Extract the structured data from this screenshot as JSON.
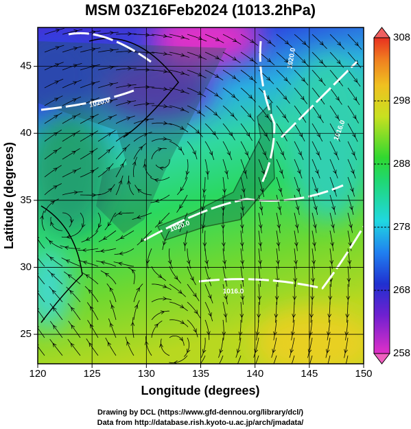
{
  "chart_data": {
    "type": "map",
    "title": "MSM 03Z16Feb2024 (1013.2hPa)",
    "x_label": "Longitude (degrees)",
    "y_label": "Latitude  (degrees)",
    "xlim": [
      120,
      150
    ],
    "xticks": [
      120,
      125,
      130,
      135,
      140,
      145,
      150
    ],
    "ylim": [
      22.8,
      47.9
    ],
    "yticks": [
      25,
      30,
      35,
      40,
      45
    ],
    "colorbar": {
      "lim": [
        258,
        308
      ],
      "ticks": [
        258,
        268,
        278,
        288,
        298,
        308
      ]
    },
    "contour_labels": [
      "1020.0",
      "1020.0",
      "1016.0",
      "1020.0",
      "1016.0"
    ],
    "credits": [
      "Drawing by DCL (https://www.gfd-dennou.org/library/dcl/)",
      "Data from http://database.rish.kyoto-u.ac.jp/arch/jmadata/"
    ]
  }
}
